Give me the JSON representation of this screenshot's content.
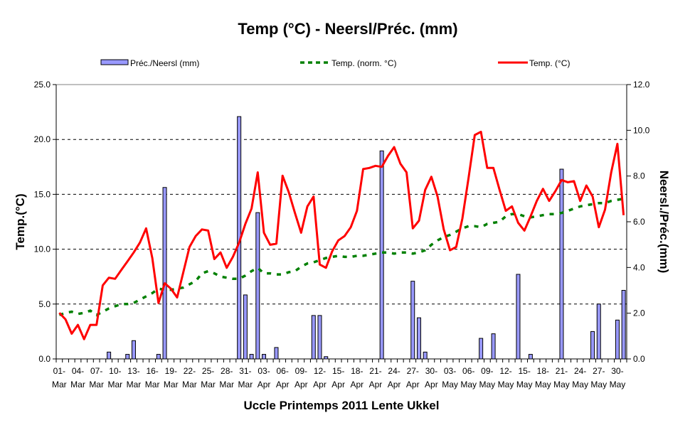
{
  "chart_data": {
    "type": "bar+line",
    "title": "Temp (°C) - Neersl/Préc. (mm)",
    "xlabel": "Uccle Printemps 2011 Lente  Ukkel",
    "ylabel_left": "Temp.(°C)",
    "ylabel_right": "Neersl./Préc.(mm)",
    "ylim_left": [
      0,
      25
    ],
    "ylim_right": [
      0,
      12
    ],
    "yticks_left": [
      "0.0",
      "5.0",
      "10.0",
      "15.0",
      "20.0",
      "25.0"
    ],
    "yticks_right": [
      "0.0",
      "2.0",
      "4.0",
      "6.0",
      "8.0",
      "10.0",
      "12.0"
    ],
    "grid": "horizontal dashed",
    "legend_position": "top",
    "x_days": 92,
    "x_tick_every_days": 3,
    "x_tick_labels": [
      [
        "01-",
        "Mar"
      ],
      [
        "04-",
        "Mar"
      ],
      [
        "07-",
        "Mar"
      ],
      [
        "10-",
        "Mar"
      ],
      [
        "13-",
        "Mar"
      ],
      [
        "16-",
        "Mar"
      ],
      [
        "19-",
        "Mar"
      ],
      [
        "22-",
        "Mar"
      ],
      [
        "25-",
        "Mar"
      ],
      [
        "28-",
        "Mar"
      ],
      [
        "31-",
        "Mar"
      ],
      [
        "03-",
        "Apr"
      ],
      [
        "06-",
        "Apr"
      ],
      [
        "09-",
        "Apr"
      ],
      [
        "12-",
        "Apr"
      ],
      [
        "15-",
        "Apr"
      ],
      [
        "18-",
        "Apr"
      ],
      [
        "21-",
        "Apr"
      ],
      [
        "24-",
        "Apr"
      ],
      [
        "27-",
        "Apr"
      ],
      [
        "30-",
        "Apr"
      ],
      [
        "03-",
        "May"
      ],
      [
        "06-",
        "May"
      ],
      [
        "09-",
        "May"
      ],
      [
        "12-",
        "May"
      ],
      [
        "15-",
        "May"
      ],
      [
        "18-",
        "May"
      ],
      [
        "21-",
        "May"
      ],
      [
        "24-",
        "May"
      ],
      [
        "27-",
        "May"
      ],
      [
        "30-",
        "May"
      ]
    ],
    "series": [
      {
        "name": "Préc./Neersl (mm)",
        "type": "bar",
        "axis": "right",
        "color": "#9999ff",
        "values": [
          0,
          0,
          0,
          0,
          0,
          0,
          0,
          0,
          0.3,
          0,
          0,
          0.2,
          0.8,
          0,
          0,
          0,
          0.2,
          7.5,
          0,
          0,
          0,
          0,
          0,
          0,
          0,
          0,
          0,
          0,
          0,
          10.6,
          2.8,
          0.2,
          6.4,
          0.2,
          0,
          0.5,
          0,
          0,
          0,
          0,
          0,
          1.9,
          1.9,
          0.1,
          0,
          0,
          0,
          0,
          0,
          0,
          0,
          0,
          9.1,
          0,
          0,
          0,
          0,
          3.4,
          1.8,
          0.3,
          0,
          0,
          0,
          0,
          0,
          0,
          0,
          0,
          0.9,
          0,
          1.1,
          0,
          0,
          0,
          3.7,
          0,
          0.2,
          0,
          0,
          0,
          0,
          8.3,
          0,
          0,
          0,
          0,
          1.2,
          2.4,
          0,
          0,
          1.7,
          3.0
        ]
      },
      {
        "name": "Temp. (norm. °C)",
        "type": "line",
        "style": "dashed",
        "axis": "left",
        "color": "#008000",
        "values": [
          4.0,
          4.2,
          4.3,
          4.1,
          4.2,
          4.4,
          4.0,
          4.3,
          4.6,
          4.8,
          5.0,
          5.0,
          5.1,
          5.4,
          5.7,
          6.0,
          6.4,
          6.3,
          6.3,
          6.4,
          6.5,
          6.8,
          7.1,
          7.8,
          8.0,
          7.8,
          7.5,
          7.4,
          7.3,
          7.3,
          7.6,
          8.0,
          8.3,
          7.8,
          7.8,
          7.7,
          7.7,
          7.9,
          8.0,
          8.4,
          8.7,
          8.8,
          9.0,
          9.2,
          9.3,
          9.4,
          9.3,
          9.3,
          9.4,
          9.4,
          9.5,
          9.6,
          9.7,
          9.7,
          9.6,
          9.7,
          9.7,
          9.6,
          9.7,
          9.9,
          10.4,
          10.8,
          11.1,
          11.3,
          11.6,
          11.9,
          12.1,
          12.1,
          12.0,
          12.3,
          12.4,
          12.5,
          13.0,
          13.2,
          13.2,
          13.0,
          12.9,
          13.0,
          13.1,
          13.2,
          13.2,
          13.3,
          13.5,
          13.7,
          13.9,
          14.0,
          14.1,
          14.2,
          14.2,
          14.4,
          14.5,
          14.6
        ]
      },
      {
        "name": "Temp. (°C)",
        "type": "line",
        "style": "solid",
        "axis": "left",
        "color": "#ff0000",
        "values": [
          4.2,
          3.6,
          2.3,
          3.1,
          1.8,
          3.1,
          3.1,
          6.7,
          7.4,
          7.3,
          8.1,
          8.9,
          9.7,
          10.6,
          11.9,
          9.2,
          5.1,
          6.9,
          6.4,
          5.6,
          7.9,
          10.2,
          11.2,
          11.8,
          11.7,
          9.1,
          9.7,
          8.3,
          9.3,
          10.6,
          12.3,
          13.7,
          17.0,
          11.5,
          10.4,
          10.5,
          16.7,
          15.2,
          13.3,
          11.5,
          13.9,
          14.8,
          8.6,
          8.3,
          9.8,
          10.8,
          11.2,
          12.0,
          13.5,
          17.3,
          17.4,
          17.6,
          17.5,
          18.5,
          19.3,
          17.8,
          17.0,
          11.9,
          12.6,
          15.4,
          16.6,
          14.8,
          11.8,
          9.9,
          10.2,
          12.8,
          16.5,
          20.4,
          20.7,
          17.4,
          17.4,
          15.4,
          13.5,
          13.9,
          12.4,
          11.7,
          13.0,
          14.4,
          15.5,
          14.4,
          15.3,
          16.3,
          16.1,
          16.2,
          14.4,
          15.8,
          14.8,
          12.0,
          13.6,
          17.0,
          19.6,
          13.1
        ]
      }
    ]
  }
}
